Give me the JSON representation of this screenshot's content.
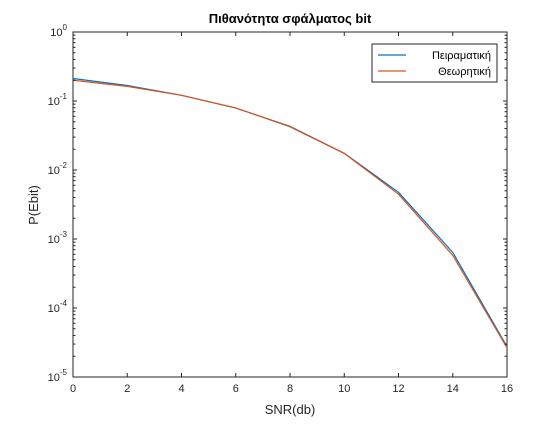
{
  "chart_data": {
    "type": "line",
    "title": "Πιθανότητα σφάλματος bit",
    "xlabel": "SNR(db)",
    "ylabel": "P(Ebit)",
    "xlim": [
      0,
      16
    ],
    "ylim": [
      1e-05,
      1
    ],
    "yscale": "log",
    "grid": false,
    "legend_position": "top-right",
    "x_ticks": [
      "0",
      "2",
      "4",
      "6",
      "8",
      "10",
      "12",
      "14",
      "16"
    ],
    "y_ticks": [
      {
        "base": "10",
        "exp": "0"
      },
      {
        "base": "10",
        "exp": "-1"
      },
      {
        "base": "10",
        "exp": "-2"
      },
      {
        "base": "10",
        "exp": "-3"
      },
      {
        "base": "10",
        "exp": "-4"
      },
      {
        "base": "10",
        "exp": "-5"
      }
    ],
    "x": [
      0,
      2,
      4,
      6,
      8,
      10,
      12,
      14,
      16
    ],
    "series": [
      {
        "name": "Πειραματική",
        "color": "#0072BD",
        "values": [
          0.212,
          0.168,
          0.121,
          0.079,
          0.0429,
          0.0175,
          0.00475,
          0.00064,
          2.75e-05
        ]
      },
      {
        "name": "Θεωρητική",
        "color": "#D95319",
        "values": [
          0.2,
          0.163,
          0.121,
          0.0794,
          0.0423,
          0.0174,
          0.00446,
          0.00058,
          2.65e-05
        ]
      }
    ]
  }
}
